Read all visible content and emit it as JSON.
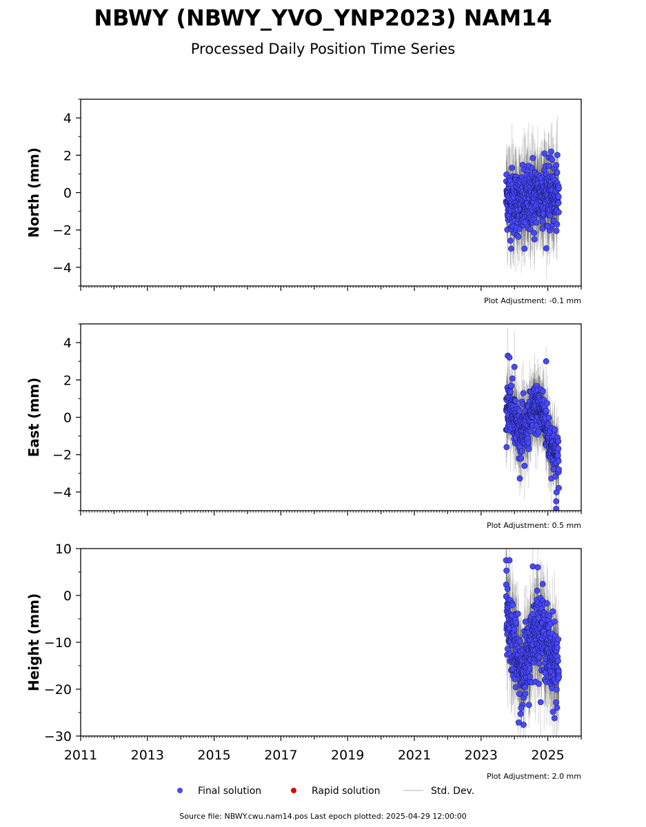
{
  "header": {
    "title": "NBWY (NBWY_YVO_YNP2023) NAM14",
    "subtitle": "Processed Daily Position Time Series"
  },
  "legend": {
    "final_label": "Final solution",
    "rapid_label": "Rapid solution",
    "std_label": "Std. Dev.",
    "final_color": "#4848ff",
    "rapid_color": "#e00000",
    "std_color": "#cccccc"
  },
  "footer": {
    "source": "Source file: NBWY.cwu.nam14.pos  Last epoch plotted: 2025-04-29 12:00:00"
  },
  "chart_data": [
    {
      "type": "scatter",
      "component": "North",
      "ylabel": "North (mm)",
      "adjustment": "Plot Adjustment: -0.1 mm",
      "xlim": [
        2011,
        2026
      ],
      "ylim": [
        -5,
        5
      ],
      "y_ticks": [
        4,
        2,
        0,
        -2,
        -4
      ],
      "y_tick_labels": [
        "4",
        "2",
        "0",
        "−2",
        "−4"
      ],
      "x_ticks": [
        2011,
        2013,
        2015,
        2017,
        2019,
        2021,
        2023,
        2025
      ],
      "x_tick_labels": [],
      "grid": false,
      "series": [
        {
          "name": "Final solution",
          "x_range": [
            2023.75,
            2025.33
          ],
          "mean_anchors": [
            [
              2023.75,
              -0.2
            ],
            [
              2024.2,
              -0.7
            ],
            [
              2024.6,
              -0.2
            ],
            [
              2025.0,
              0.0
            ],
            [
              2025.33,
              -0.4
            ]
          ],
          "scatter_sd": 0.85,
          "stddev_half_width": 1.6,
          "stddev_spread": 0.5,
          "n_points": 460,
          "outliers": [
            [
              2024.55,
              1.85
            ],
            [
              2024.9,
              2.1
            ],
            [
              2023.9,
              -3.0
            ],
            [
              2024.3,
              -3.0
            ],
            [
              2024.6,
              -2.5
            ],
            [
              2025.0,
              -1.8
            ]
          ]
        }
      ]
    },
    {
      "type": "scatter",
      "component": "East",
      "ylabel": "East (mm)",
      "adjustment": "Plot Adjustment: 0.5 mm",
      "xlim": [
        2011,
        2026
      ],
      "ylim": [
        -5,
        5
      ],
      "y_ticks": [
        4,
        2,
        0,
        -2,
        -4
      ],
      "y_tick_labels": [
        "4",
        "2",
        "0",
        "−2",
        "−4"
      ],
      "x_ticks": [
        2011,
        2013,
        2015,
        2017,
        2019,
        2021,
        2023,
        2025
      ],
      "x_tick_labels": [],
      "grid": false,
      "series": [
        {
          "name": "Final solution",
          "x_range": [
            2023.75,
            2025.33
          ],
          "mean_anchors": [
            [
              2023.75,
              0.2
            ],
            [
              2023.9,
              0.8
            ],
            [
              2024.1,
              -0.6
            ],
            [
              2024.3,
              -0.8
            ],
            [
              2024.6,
              0.5
            ],
            [
              2024.85,
              0.3
            ],
            [
              2025.05,
              -1.2
            ],
            [
              2025.33,
              -2.4
            ]
          ],
          "scatter_sd": 0.65,
          "stddev_half_width": 1.3,
          "stddev_spread": 0.4,
          "n_points": 460,
          "outliers": [
            [
              2023.8,
              3.3
            ],
            [
              2023.85,
              3.2
            ],
            [
              2024.0,
              2.7
            ],
            [
              2024.95,
              3.0
            ],
            [
              2025.25,
              -4.5
            ],
            [
              2025.25,
              -4.9
            ],
            [
              2024.3,
              -2.6
            ]
          ]
        }
      ]
    },
    {
      "type": "scatter",
      "component": "Height",
      "ylabel": "Height (mm)",
      "adjustment": "Plot Adjustment: 2.0 mm",
      "xlim": [
        2011,
        2026
      ],
      "ylim": [
        -30,
        10
      ],
      "y_ticks": [
        10,
        0,
        -10,
        -20,
        -30
      ],
      "y_tick_labels": [
        "10",
        "0",
        "−10",
        "−20",
        "−30"
      ],
      "x_ticks": [
        2011,
        2013,
        2015,
        2017,
        2019,
        2021,
        2023,
        2025
      ],
      "x_tick_labels": [
        "2011",
        "2013",
        "2015",
        "2017",
        "2019",
        "2021",
        "2023",
        "2025"
      ],
      "grid": false,
      "series": [
        {
          "name": "Final solution",
          "x_range": [
            2023.75,
            2025.33
          ],
          "mean_anchors": [
            [
              2023.75,
              -3
            ],
            [
              2023.95,
              -9
            ],
            [
              2024.15,
              -16
            ],
            [
              2024.4,
              -14
            ],
            [
              2024.6,
              -7
            ],
            [
              2024.85,
              -8
            ],
            [
              2025.05,
              -12
            ],
            [
              2025.33,
              -15
            ]
          ],
          "scatter_sd": 4.0,
          "stddev_half_width": 7.0,
          "stddev_spread": 2.0,
          "n_points": 460,
          "outliers": [
            [
              2023.75,
              7.5
            ],
            [
              2023.85,
              7.5
            ],
            [
              2024.55,
              6.2
            ],
            [
              2024.7,
              6.0
            ],
            [
              2024.2,
              -24
            ],
            [
              2025.2,
              -26.2
            ]
          ]
        }
      ]
    }
  ]
}
